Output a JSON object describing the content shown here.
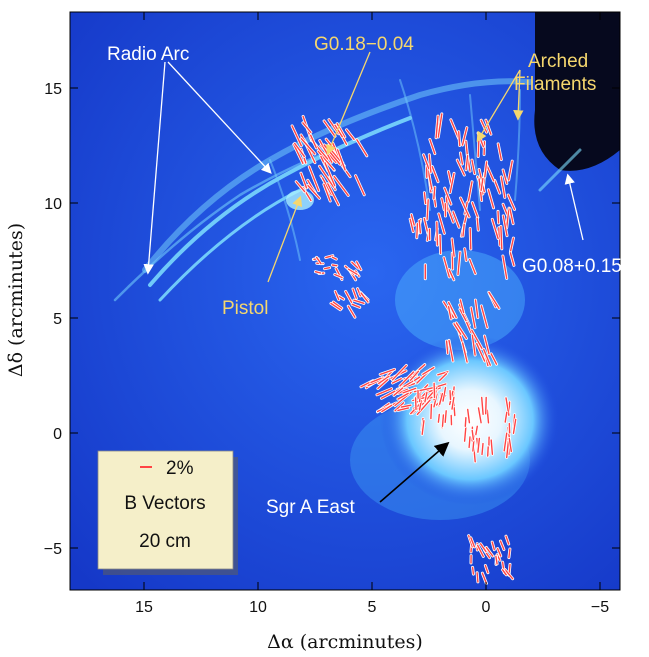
{
  "axes": {
    "xlabel": "Δα (arcminutes)",
    "ylabel": "Δδ (arcminutes)",
    "xticks": [
      "15",
      "10",
      "5",
      "0",
      "−5"
    ],
    "yticks": [
      "15",
      "10",
      "5",
      "0",
      "−5"
    ]
  },
  "annotations": {
    "radio_arc": "Radio Arc",
    "g018": "G0.18−0.04",
    "arched_1": "Arched",
    "arched_2": "Filaments",
    "pistol": "Pistol",
    "g008": "G0.08+0.15",
    "sgr_a_east": "Sgr A East"
  },
  "legend": {
    "scale": "2%",
    "line2": "B Vectors",
    "line3": "20 cm"
  },
  "colors": {
    "background_map": "#1a44e0",
    "vector": "#ff4444",
    "label_yellow": "#f5d76e",
    "legend_bg": "#f5efc9"
  }
}
